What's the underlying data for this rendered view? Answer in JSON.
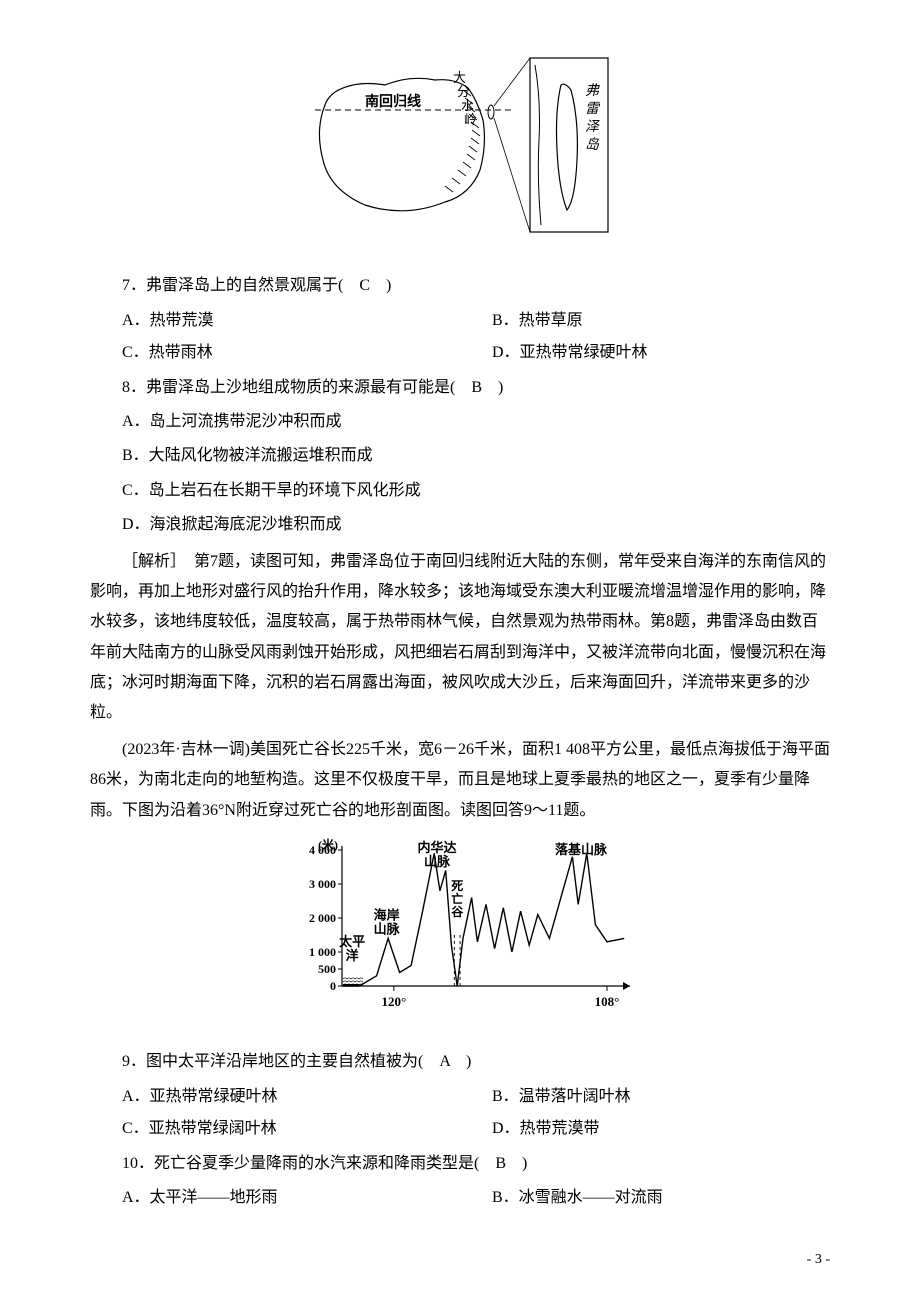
{
  "figure1": {
    "label_tropic": "南回归线",
    "label_divide": "大分水岭",
    "label_island": "弗雷泽岛",
    "colors": {
      "stroke": "#000000",
      "fill": "#ffffff",
      "background": "#ffffff"
    },
    "tropic_y": 60
  },
  "q7": {
    "stem": "7．弗雷泽岛上的自然景观属于(　C　)",
    "optA": "A．热带荒漠",
    "optB": "B．热带草原",
    "optC": "C．热带雨林",
    "optD": "D．亚热带常绿硬叶林"
  },
  "q8": {
    "stem": "8．弗雷泽岛上沙地组成物质的来源最有可能是(　B　)",
    "optA": "A．岛上河流携带泥沙冲积而成",
    "optB": "B．大陆风化物被洋流搬运堆积而成",
    "optC": "C．岛上岩石在长期干旱的环境下风化形成",
    "optD": "D．海浪掀起海底泥沙堆积而成"
  },
  "explain78": "［解析］　第7题，读图可知，弗雷泽岛位于南回归线附近大陆的东侧，常年受来自海洋的东南信风的影响，再加上地形对盛行风的抬升作用，降水较多；该地海域受东澳大利亚暖流增温增湿作用的影响，降水较多，该地纬度较低，温度较高，属于热带雨林气候，自然景观为热带雨林。第8题，弗雷泽岛由数百年前大陆南方的山脉受风雨剥蚀开始形成，风把细岩石屑刮到海洋中，又被洋流带向北面，慢慢沉积在海底；冰河时期海面下降，沉积的岩石屑露出海面，被风吹成大沙丘，后来海面回升，洋流带来更多的沙粒。",
  "intro911": "(2023年·吉林一调)美国死亡谷长225千米，宽6－26千米，面积1 408平方公里，最低点海拔低于海平面86米，为南北走向的地堑构造。这里不仅极度干旱，而且是地球上夏季最热的地区之一，夏季有少量降雨。下图为沿着36°N附近穿过死亡谷的地形剖面图。读图回答9～11题。",
  "q9": {
    "stem": "9．图中太平洋沿岸地区的主要自然植被为(　A　)",
    "optA": "A．亚热带常绿硬叶林",
    "optB": "B．温带落叶阔叶林",
    "optC": "C．亚热带常绿阔叶林",
    "optD": "D．热带荒漠带"
  },
  "q10": {
    "stem": "10．死亡谷夏季少量降雨的水汽来源和降雨类型是(　B　)",
    "optA": "A．太平洋——地形雨",
    "optB": "B．冰雪融水——对流雨"
  },
  "profile": {
    "y_unit": "(米)",
    "y_ticks": [
      "4 000",
      "3 000",
      "2 000",
      "1 000",
      "500",
      "0"
    ],
    "y_vals": [
      4000,
      3000,
      2000,
      1000,
      500,
      0
    ],
    "x_ticks": [
      "120°",
      "108°"
    ],
    "x_positions": [
      0.18,
      0.92
    ],
    "labels": {
      "pacific": "太平洋",
      "coast": "海岸山脉",
      "nevada": "内华达山脉",
      "death": "死亡谷",
      "rocky": "落基山脉"
    },
    "colors": {
      "axis": "#000000",
      "line": "#000000",
      "fill_pacific": "#000000",
      "text": "#000000",
      "background": "#ffffff"
    },
    "fontsize_axis": 12,
    "fontsize_label": 13,
    "fontweight_label": "bold",
    "profile_points": [
      [
        0.0,
        0
      ],
      [
        0.06,
        0
      ],
      [
        0.12,
        300
      ],
      [
        0.16,
        1400
      ],
      [
        0.2,
        400
      ],
      [
        0.24,
        600
      ],
      [
        0.28,
        2200
      ],
      [
        0.32,
        3900
      ],
      [
        0.34,
        2800
      ],
      [
        0.36,
        3400
      ],
      [
        0.38,
        1200
      ],
      [
        0.4,
        -80
      ],
      [
        0.42,
        1400
      ],
      [
        0.45,
        2600
      ],
      [
        0.47,
        1300
      ],
      [
        0.5,
        2400
      ],
      [
        0.53,
        1100
      ],
      [
        0.56,
        2300
      ],
      [
        0.59,
        1000
      ],
      [
        0.62,
        2200
      ],
      [
        0.65,
        1200
      ],
      [
        0.68,
        2100
      ],
      [
        0.72,
        1400
      ],
      [
        0.76,
        2600
      ],
      [
        0.8,
        3800
      ],
      [
        0.82,
        2400
      ],
      [
        0.85,
        3900
      ],
      [
        0.88,
        1800
      ],
      [
        0.92,
        1300
      ],
      [
        0.98,
        1400
      ]
    ]
  },
  "page_num": "- 3 -"
}
